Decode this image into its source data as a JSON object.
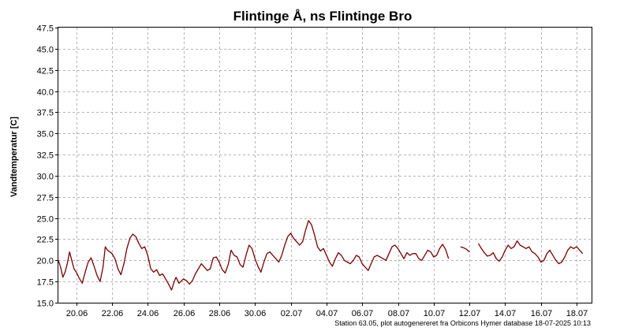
{
  "chart_data": {
    "type": "line",
    "title": "Flintinge Å, ns Flintinge Bro",
    "ylabel": "Vandtemperatur [C]",
    "xlabel": "",
    "ylim": [
      15.0,
      47.5
    ],
    "yticks": [
      "15.0",
      "17.5",
      "20.0",
      "22.5",
      "25.0",
      "27.5",
      "30.0",
      "32.5",
      "35.0",
      "37.5",
      "40.0",
      "42.5",
      "45.0",
      "47.5"
    ],
    "xlim": [
      "2025-06-19",
      "2025-07-18T20:00"
    ],
    "xticks": [
      {
        "label": "20.06",
        "date": "2025-06-20"
      },
      {
        "label": "22.06",
        "date": "2025-06-22"
      },
      {
        "label": "24.06",
        "date": "2025-06-24"
      },
      {
        "label": "26.06",
        "date": "2025-06-26"
      },
      {
        "label": "28.06",
        "date": "2025-06-28"
      },
      {
        "label": "30.06",
        "date": "2025-06-30"
      },
      {
        "label": "02.07",
        "date": "2025-07-02"
      },
      {
        "label": "04.07",
        "date": "2025-07-04"
      },
      {
        "label": "06.07",
        "date": "2025-07-06"
      },
      {
        "label": "08.07",
        "date": "2025-07-08"
      },
      {
        "label": "10.07",
        "date": "2025-07-10"
      },
      {
        "label": "12.07",
        "date": "2025-07-12"
      },
      {
        "label": "14.07",
        "date": "2025-07-14"
      },
      {
        "label": "16.07",
        "date": "2025-07-16"
      },
      {
        "label": "18.07",
        "date": "2025-07-18"
      }
    ],
    "grid": true,
    "line_color": "#7a0000",
    "series": [
      {
        "segments": [
          [
            [
              "2025-06-19T00:00",
              20.0
            ],
            [
              "2025-06-19T03:00",
              19.2
            ],
            [
              "2025-06-19T06:00",
              18.0
            ],
            [
              "2025-06-19T09:00",
              18.6
            ],
            [
              "2025-06-19T12:00",
              19.6
            ],
            [
              "2025-06-19T15:00",
              21.0
            ],
            [
              "2025-06-19T18:00",
              20.0
            ],
            [
              "2025-06-19T21:00",
              19.0
            ],
            [
              "2025-06-20T00:00",
              18.6
            ],
            [
              "2025-06-20T04:00",
              17.9
            ],
            [
              "2025-06-20T08:00",
              17.3
            ],
            [
              "2025-06-20T12:00",
              18.6
            ],
            [
              "2025-06-20T16:00",
              19.8
            ],
            [
              "2025-06-20T20:00",
              20.3
            ],
            [
              "2025-06-21T00:00",
              19.3
            ],
            [
              "2025-06-21T04:00",
              18.2
            ],
            [
              "2025-06-21T08:00",
              17.5
            ],
            [
              "2025-06-21T12:00",
              19.2
            ],
            [
              "2025-06-21T15:00",
              21.6
            ],
            [
              "2025-06-21T18:00",
              21.2
            ],
            [
              "2025-06-22T00:00",
              20.8
            ],
            [
              "2025-06-22T04:00",
              20.2
            ],
            [
              "2025-06-22T08:00",
              19.0
            ],
            [
              "2025-06-22T12:00",
              18.3
            ],
            [
              "2025-06-22T16:00",
              19.6
            ],
            [
              "2025-06-22T20:00",
              21.4
            ],
            [
              "2025-06-23T00:00",
              22.6
            ],
            [
              "2025-06-23T04:00",
              23.1
            ],
            [
              "2025-06-23T08:00",
              22.8
            ],
            [
              "2025-06-23T12:00",
              22.0
            ],
            [
              "2025-06-23T16:00",
              21.4
            ],
            [
              "2025-06-23T20:00",
              21.6
            ],
            [
              "2025-06-24T00:00",
              20.6
            ],
            [
              "2025-06-24T04:00",
              19.0
            ],
            [
              "2025-06-24T08:00",
              18.6
            ],
            [
              "2025-06-24T12:00",
              18.9
            ],
            [
              "2025-06-24T16:00",
              18.2
            ],
            [
              "2025-06-24T20:00",
              18.4
            ],
            [
              "2025-06-25T00:00",
              17.8
            ],
            [
              "2025-06-25T04:00",
              17.2
            ],
            [
              "2025-06-25T08:00",
              16.5
            ],
            [
              "2025-06-25T12:00",
              17.6
            ],
            [
              "2025-06-25T14:00",
              18.0
            ],
            [
              "2025-06-25T18:00",
              17.3
            ],
            [
              "2025-06-26T00:00",
              17.8
            ],
            [
              "2025-06-26T04:00",
              17.6
            ],
            [
              "2025-06-26T08:00",
              17.2
            ],
            [
              "2025-06-26T12:00",
              17.6
            ],
            [
              "2025-06-26T16:00",
              18.4
            ],
            [
              "2025-06-26T20:00",
              19.0
            ],
            [
              "2025-06-27T00:00",
              19.6
            ],
            [
              "2025-06-27T04:00",
              19.2
            ],
            [
              "2025-06-27T08:00",
              18.8
            ],
            [
              "2025-06-27T12:00",
              19.0
            ],
            [
              "2025-06-27T16:00",
              20.3
            ],
            [
              "2025-06-27T20:00",
              20.4
            ],
            [
              "2025-06-28T00:00",
              19.8
            ],
            [
              "2025-06-28T04:00",
              18.9
            ],
            [
              "2025-06-28T08:00",
              18.5
            ],
            [
              "2025-06-28T12:00",
              19.5
            ],
            [
              "2025-06-28T16:00",
              21.2
            ],
            [
              "2025-06-28T20:00",
              20.6
            ],
            [
              "2025-06-29T00:00",
              20.4
            ],
            [
              "2025-06-29T04:00",
              19.5
            ],
            [
              "2025-06-29T08:00",
              19.2
            ],
            [
              "2025-06-29T12:00",
              20.6
            ],
            [
              "2025-06-29T16:00",
              21.8
            ],
            [
              "2025-06-29T20:00",
              21.4
            ],
            [
              "2025-06-30T00:00",
              20.2
            ],
            [
              "2025-06-30T04:00",
              19.3
            ],
            [
              "2025-06-30T08:00",
              18.6
            ],
            [
              "2025-06-30T12:00",
              19.8
            ],
            [
              "2025-06-30T16:00",
              20.8
            ],
            [
              "2025-06-30T20:00",
              21.0
            ],
            [
              "2025-07-01T00:00",
              20.6
            ],
            [
              "2025-07-01T04:00",
              20.2
            ],
            [
              "2025-07-01T08:00",
              19.8
            ],
            [
              "2025-07-01T12:00",
              20.6
            ],
            [
              "2025-07-01T16:00",
              21.8
            ],
            [
              "2025-07-01T20:00",
              22.8
            ],
            [
              "2025-07-02T00:00",
              23.2
            ],
            [
              "2025-07-02T04:00",
              22.6
            ],
            [
              "2025-07-02T08:00",
              22.2
            ],
            [
              "2025-07-02T12:00",
              21.8
            ],
            [
              "2025-07-02T16:00",
              22.2
            ],
            [
              "2025-07-02T20:00",
              23.6
            ],
            [
              "2025-07-03T00:00",
              24.7
            ],
            [
              "2025-07-03T04:00",
              24.2
            ],
            [
              "2025-07-03T08:00",
              23.0
            ],
            [
              "2025-07-03T12:00",
              21.6
            ],
            [
              "2025-07-03T16:00",
              21.1
            ],
            [
              "2025-07-03T20:00",
              21.4
            ],
            [
              "2025-07-04T00:00",
              20.6
            ],
            [
              "2025-07-04T04:00",
              19.8
            ],
            [
              "2025-07-04T08:00",
              19.3
            ],
            [
              "2025-07-04T12:00",
              20.2
            ],
            [
              "2025-07-04T16:00",
              20.9
            ],
            [
              "2025-07-04T20:00",
              20.6
            ],
            [
              "2025-07-05T00:00",
              20.0
            ],
            [
              "2025-07-05T04:00",
              19.8
            ],
            [
              "2025-07-05T08:00",
              19.6
            ],
            [
              "2025-07-05T12:00",
              20.0
            ],
            [
              "2025-07-05T16:00",
              20.6
            ],
            [
              "2025-07-05T20:00",
              20.4
            ],
            [
              "2025-07-06T00:00",
              19.6
            ],
            [
              "2025-07-06T04:00",
              19.2
            ],
            [
              "2025-07-06T08:00",
              18.8
            ],
            [
              "2025-07-06T12:00",
              19.6
            ],
            [
              "2025-07-06T16:00",
              20.4
            ],
            [
              "2025-07-06T20:00",
              20.6
            ],
            [
              "2025-07-07T00:00",
              20.4
            ],
            [
              "2025-07-07T04:00",
              20.2
            ],
            [
              "2025-07-07T08:00",
              20.0
            ],
            [
              "2025-07-07T12:00",
              20.8
            ],
            [
              "2025-07-07T16:00",
              21.6
            ],
            [
              "2025-07-07T20:00",
              21.8
            ],
            [
              "2025-07-08T00:00",
              21.4
            ],
            [
              "2025-07-08T04:00",
              20.8
            ],
            [
              "2025-07-08T08:00",
              20.2
            ],
            [
              "2025-07-08T12:00",
              20.9
            ],
            [
              "2025-07-08T16:00",
              20.6
            ],
            [
              "2025-07-08T20:00",
              20.8
            ],
            [
              "2025-07-09T00:00",
              20.8
            ],
            [
              "2025-07-09T04:00",
              20.2
            ],
            [
              "2025-07-09T08:00",
              20.0
            ],
            [
              "2025-07-09T12:00",
              20.6
            ],
            [
              "2025-07-09T16:00",
              21.2
            ],
            [
              "2025-07-09T20:00",
              21.0
            ],
            [
              "2025-07-10T00:00",
              20.4
            ],
            [
              "2025-07-10T04:00",
              20.6
            ],
            [
              "2025-07-10T08:00",
              21.4
            ],
            [
              "2025-07-10T12:00",
              21.9
            ],
            [
              "2025-07-10T16:00",
              21.3
            ],
            [
              "2025-07-10T20:00",
              20.2
            ]
          ],
          [
            [
              "2025-07-11T12:00",
              21.6
            ],
            [
              "2025-07-11T16:00",
              21.5
            ],
            [
              "2025-07-11T20:00",
              21.3
            ],
            [
              "2025-07-12T00:00",
              21.0
            ]
          ],
          [
            [
              "2025-07-12T12:00",
              22.0
            ],
            [
              "2025-07-12T16:00",
              21.4
            ],
            [
              "2025-07-12T20:00",
              20.9
            ],
            [
              "2025-07-13T00:00",
              20.5
            ],
            [
              "2025-07-13T04:00",
              20.6
            ],
            [
              "2025-07-13T08:00",
              20.9
            ],
            [
              "2025-07-13T12:00",
              20.2
            ],
            [
              "2025-07-13T16:00",
              19.9
            ],
            [
              "2025-07-13T20:00",
              20.4
            ],
            [
              "2025-07-14T00:00",
              21.2
            ],
            [
              "2025-07-14T04:00",
              21.8
            ],
            [
              "2025-07-14T08:00",
              21.4
            ],
            [
              "2025-07-14T12:00",
              21.6
            ],
            [
              "2025-07-14T16:00",
              22.3
            ],
            [
              "2025-07-14T20:00",
              21.8
            ],
            [
              "2025-07-15T00:00",
              21.6
            ],
            [
              "2025-07-15T04:00",
              21.4
            ],
            [
              "2025-07-15T08:00",
              21.6
            ],
            [
              "2025-07-15T12:00",
              21.0
            ],
            [
              "2025-07-15T16:00",
              20.8
            ],
            [
              "2025-07-15T20:00",
              20.4
            ],
            [
              "2025-07-16T00:00",
              19.8
            ],
            [
              "2025-07-16T04:00",
              20.0
            ],
            [
              "2025-07-16T08:00",
              20.8
            ],
            [
              "2025-07-16T12:00",
              21.2
            ],
            [
              "2025-07-16T16:00",
              20.6
            ],
            [
              "2025-07-16T20:00",
              20.0
            ],
            [
              "2025-07-17T00:00",
              19.6
            ],
            [
              "2025-07-17T04:00",
              19.8
            ],
            [
              "2025-07-17T08:00",
              20.4
            ],
            [
              "2025-07-17T12:00",
              21.2
            ],
            [
              "2025-07-17T16:00",
              21.6
            ],
            [
              "2025-07-17T20:00",
              21.4
            ],
            [
              "2025-07-18T00:00",
              21.6
            ],
            [
              "2025-07-18T04:00",
              21.2
            ],
            [
              "2025-07-18T08:00",
              20.8
            ]
          ]
        ]
      }
    ]
  },
  "footer": {
    "source_note": "Station 63.05, plot autogenereret fra Orbicons Hymer database 18-07-2025 10:13"
  }
}
